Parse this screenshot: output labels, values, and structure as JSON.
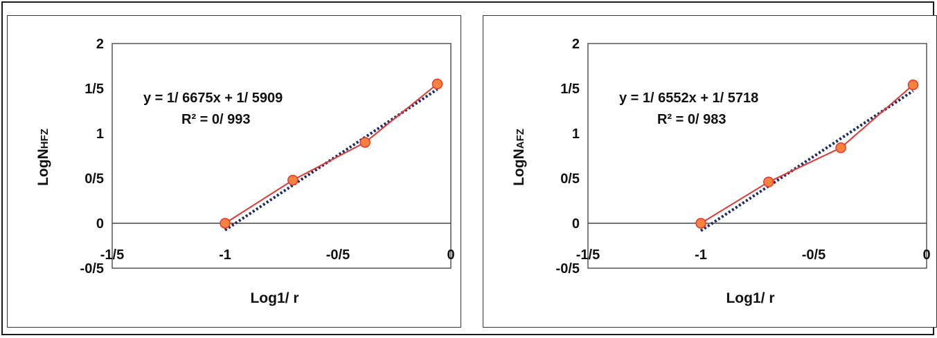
{
  "chart_data": [
    {
      "type": "scatter",
      "xlabel": "Log1/ r",
      "ylabel": "LogN",
      "ylabel_sub": "HFZ",
      "xlim": [
        -1.5,
        0
      ],
      "ylim": [
        -0.5,
        2
      ],
      "x_ticks": [
        {
          "value": -1.5,
          "label": "-1/5"
        },
        {
          "value": -1.0,
          "label": "-1"
        },
        {
          "value": -0.5,
          "label": "-0/5"
        },
        {
          "value": 0,
          "label": "0"
        }
      ],
      "y_ticks": [
        {
          "value": 2,
          "label": "2"
        },
        {
          "value": 1.5,
          "label": "1/5"
        },
        {
          "value": 1,
          "label": "1"
        },
        {
          "value": 0.5,
          "label": "0/5"
        },
        {
          "value": 0,
          "label": "0"
        },
        {
          "value": -0.5,
          "label": "-0/5"
        }
      ],
      "equation": "y = 1/ 6675x + 1/ 5909",
      "r2": "R² = 0/ 993",
      "series": [
        {
          "x": [
            -1.0,
            -0.7,
            -0.38,
            -0.06
          ],
          "y": [
            0.0,
            0.48,
            0.9,
            1.55
          ],
          "color": "#e8362e",
          "marker": "#f5833d"
        }
      ],
      "trendline": {
        "slope": 1.6675,
        "intercept": 1.5909,
        "color": "#1a2a6b"
      },
      "grid": false
    },
    {
      "type": "scatter",
      "xlabel": "Log1/ r",
      "ylabel": "LogN",
      "ylabel_sub": "AFZ",
      "xlim": [
        -1.5,
        0
      ],
      "ylim": [
        -0.5,
        2
      ],
      "x_ticks": [
        {
          "value": -1.5,
          "label": "-1/5"
        },
        {
          "value": -1.0,
          "label": "-1"
        },
        {
          "value": -0.5,
          "label": "-0/5"
        },
        {
          "value": 0,
          "label": "0"
        }
      ],
      "y_ticks": [
        {
          "value": 2,
          "label": "2"
        },
        {
          "value": 1.5,
          "label": "1/5"
        },
        {
          "value": 1,
          "label": "1"
        },
        {
          "value": 0.5,
          "label": "0/5"
        },
        {
          "value": 0,
          "label": "0"
        },
        {
          "value": -0.5,
          "label": "-0/5"
        }
      ],
      "equation": "y = 1/ 6552x + 1/ 5718",
      "r2": "R² = 0/ 983",
      "series": [
        {
          "x": [
            -1.0,
            -0.7,
            -0.38,
            -0.06
          ],
          "y": [
            0.0,
            0.46,
            0.84,
            1.54
          ],
          "color": "#e8362e",
          "marker": "#f5833d"
        }
      ],
      "trendline": {
        "slope": 1.6552,
        "intercept": 1.5718,
        "color": "#1a2a6b"
      },
      "grid": false
    }
  ]
}
